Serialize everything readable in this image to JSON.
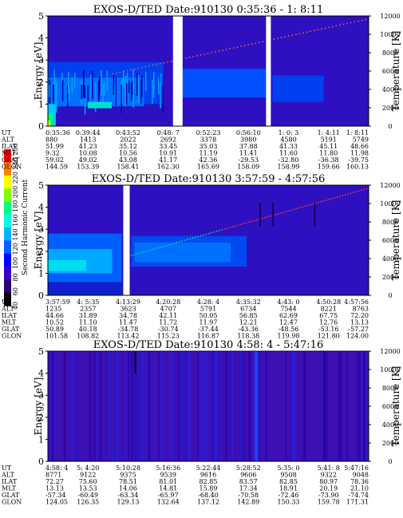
{
  "colorbar": {
    "label": "Second Harmonic Current",
    "ticks": [
      "40",
      "60",
      "80",
      "100",
      "120",
      "140",
      "160",
      "180",
      "200",
      "220",
      "240",
      "250"
    ],
    "colors": [
      "#000000",
      "#2a0070",
      "#3c00c8",
      "#0000ff",
      "#0064ff",
      "#00b4ff",
      "#00ffe6",
      "#00ff80",
      "#80ff00",
      "#ffff00",
      "#ff8000",
      "#ff0000"
    ]
  },
  "chart_data": [
    {
      "type": "heatmap",
      "title": "EXOS-D/TED   Date:910130  0:35:36 - 1: 8:11",
      "ylabel": "Energy [eV]",
      "y2label": "Temperature [K]",
      "ylim": [
        0,
        5
      ],
      "y2lim": [
        0,
        12000
      ],
      "yticks": [
        "0",
        "1",
        "2",
        "3",
        "4",
        "5"
      ],
      "y2ticks": [
        "0",
        "2000",
        "4000",
        "6000",
        "8000",
        "10000",
        "12000"
      ],
      "gaps": [
        [
          0.39,
          0.42
        ],
        [
          0.68,
          0.695
        ]
      ],
      "rows": [
        {
          "label": "UT",
          "values": [
            "0:35:36",
            "0:39:44",
            "0:43:52",
            "0:48: 7",
            "0:52:23",
            "0:56:10",
            "1: 0: 3",
            "1: 4:11",
            "1: 8:11"
          ]
        },
        {
          "label": "ALT",
          "values": [
            "880",
            "1413",
            "2022",
            "2692",
            "3378",
            "3980",
            "4580",
            "5191",
            "5749"
          ]
        },
        {
          "label": "ILAT",
          "values": [
            "51.99",
            "41.23",
            "35.12",
            "33.45",
            "35.03",
            "37.88",
            "41.33",
            "45.11",
            "48.66"
          ]
        },
        {
          "label": "MLT",
          "values": [
            "9.32",
            "10.08",
            "10.56",
            "10.91",
            "11.19",
            "11.41",
            "11.60",
            "11.80",
            "11.98"
          ]
        },
        {
          "label": "GLAT",
          "values": [
            "59.02",
            "49.02",
            "43.08",
            "41.17",
            "42.36",
            "-29.53",
            "-32.80",
            "-36.38",
            "-39.75"
          ]
        },
        {
          "label": "GLON",
          "values": [
            "144.59",
            "153.39",
            "158.41",
            "162.30",
            "165.69",
            "158.09",
            "158.99",
            "159.66",
            "160.13"
          ]
        }
      ]
    },
    {
      "type": "heatmap",
      "title": "EXOS-D/TED   Date:910130  3:57:59 - 4:57:56",
      "ylabel": "Energy [eV]",
      "y2label": "Temperature [K]",
      "ylim": [
        0,
        5
      ],
      "y2lim": [
        0,
        12000
      ],
      "yticks": [
        "0",
        "1",
        "2",
        "3",
        "4",
        "5"
      ],
      "y2ticks": [
        "0",
        "2000",
        "4000",
        "6000",
        "8000",
        "10000",
        "12000"
      ],
      "gaps": [
        [
          0.235,
          0.255
        ]
      ],
      "rows": [
        {
          "label": "UT",
          "values": [
            "3:57:59",
            "4: 5:35",
            "4:13:29",
            "4:20:28",
            "4:28: 4",
            "4:35:32",
            "4:43: 0",
            "4:50:28",
            "4:57:56"
          ]
        },
        {
          "label": "ALT",
          "values": [
            "1235",
            "2357",
            "3623",
            "4707",
            "5791",
            "6734",
            "7544",
            "8221",
            "8763"
          ]
        },
        {
          "label": "ILAT",
          "values": [
            "44.66",
            "31.89",
            "34.78",
            "42.11",
            "50.05",
            "56.85",
            "62.69",
            "67.75",
            "72.20"
          ]
        },
        {
          "label": "MLT",
          "values": [
            "10.52",
            "11.10",
            "11.47",
            "11.72",
            "11.97",
            "12.21",
            "12.47",
            "12.76",
            "13.13"
          ]
        },
        {
          "label": "GLAT",
          "values": [
            "50.89",
            "40.18",
            "-34.78",
            "-30.74",
            "-37.44",
            "-43.36",
            "-48.56",
            "-53.16",
            "-57.27"
          ]
        },
        {
          "label": "GLON",
          "values": [
            "101.58",
            "108.82",
            "113.42",
            "115.23",
            "116.87",
            "118.38",
            "119.98",
            "121.80",
            "124.00"
          ]
        }
      ]
    },
    {
      "type": "heatmap",
      "title": "EXOS-D/TED   Date:910130  4:58: 4 - 5:47:16",
      "ylabel": "Energy [eV]",
      "y2label": "Temperature [K]",
      "ylim": [
        0,
        5
      ],
      "y2lim": [
        0,
        12000
      ],
      "yticks": [
        "0",
        "1",
        "2",
        "3",
        "4",
        "5"
      ],
      "y2ticks": [
        "0",
        "2000",
        "4000",
        "6000",
        "8000",
        "10000",
        "12000"
      ],
      "gaps": [],
      "rows": [
        {
          "label": "UT",
          "values": [
            "4:58: 4",
            "5: 4:20",
            "5:10:28",
            "5:16:36",
            "5:22:44",
            "5:28:52",
            "5:35: 0",
            "5:41: 8",
            "5:47:16"
          ]
        },
        {
          "label": "ALT",
          "values": [
            "8771",
            "9122",
            "9375",
            "9539",
            "9616",
            "9606",
            "9508",
            "9322",
            "9048"
          ]
        },
        {
          "label": "ILAT",
          "values": [
            "72.27",
            "75.60",
            "78.51",
            "81.01",
            "82.85",
            "83.57",
            "82.85",
            "80.97",
            "78.36"
          ]
        },
        {
          "label": "MLT",
          "values": [
            "13.13",
            "13.53",
            "14.06",
            "14.81",
            "15.89",
            "17.34",
            "18.91",
            "20.19",
            "21.10"
          ]
        },
        {
          "label": "GLAT",
          "values": [
            "-57.34",
            "-60.49",
            "-63.34",
            "-65.97",
            "-68.40",
            "-70.58",
            "-72.46",
            "-73.90",
            "-74.74"
          ]
        },
        {
          "label": "GLON",
          "values": [
            "124.05",
            "126.35",
            "129.13",
            "132.64",
            "137.12",
            "142.89",
            "150.33",
            "159.78",
            "171.31"
          ]
        }
      ]
    }
  ]
}
